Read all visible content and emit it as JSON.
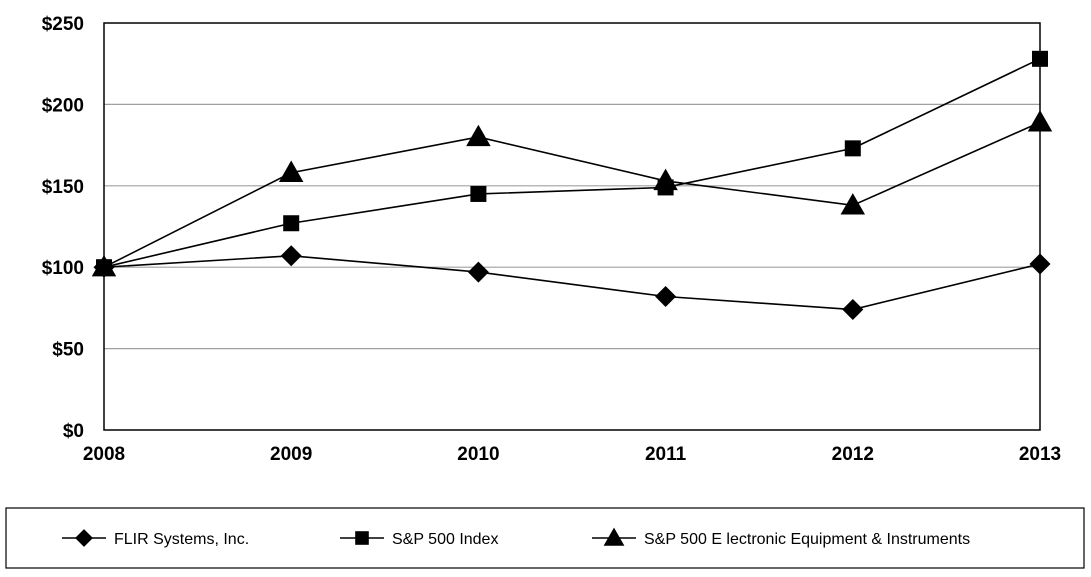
{
  "chart_data": {
    "type": "line",
    "title": "",
    "xlabel": "",
    "ylabel": "",
    "x": [
      "2008",
      "2009",
      "2010",
      "2011",
      "2012",
      "2013"
    ],
    "y_ticks": [
      0,
      50,
      100,
      150,
      200,
      250
    ],
    "y_tick_labels": [
      "$0",
      "$50",
      "$100",
      "$150",
      "$200",
      "$250"
    ],
    "ylim": [
      0,
      250
    ],
    "grid": "horizontal",
    "legend_position": "bottom",
    "series": [
      {
        "name": "FLIR Systems, Inc.",
        "marker": "diamond",
        "color": "#000000",
        "values": [
          100,
          107,
          97,
          82,
          74,
          102
        ]
      },
      {
        "name": "S&P 500 Index",
        "marker": "square",
        "color": "#000000",
        "values": [
          100,
          127,
          145,
          149,
          173,
          228
        ]
      },
      {
        "name": "S&P 500 E lectronic Equipment & Instruments",
        "marker": "triangle",
        "color": "#000000",
        "values": [
          100,
          158,
          180,
          153,
          138,
          189
        ]
      }
    ]
  }
}
